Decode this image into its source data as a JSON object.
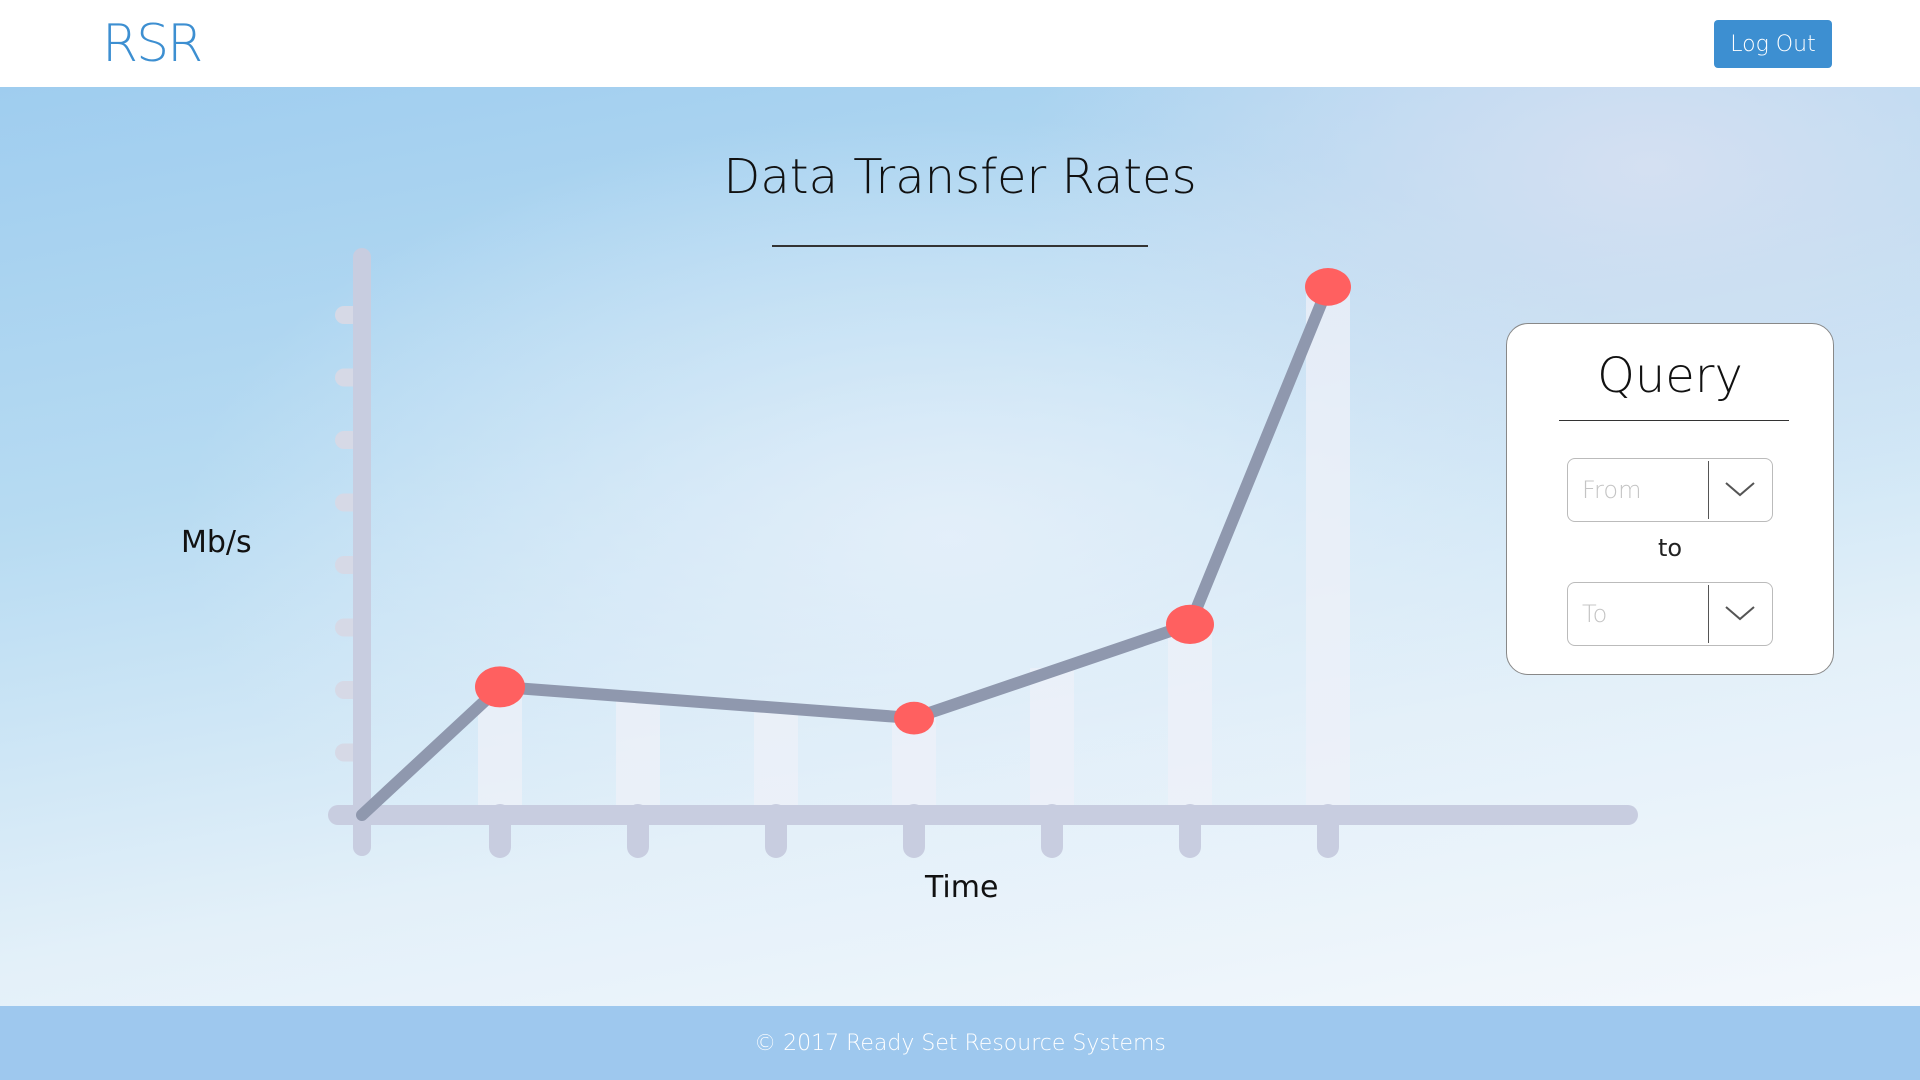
{
  "header": {
    "logo": "RSR",
    "logout_label": "Log Out"
  },
  "main": {
    "title": "Data Transfer Rates"
  },
  "chart_data": {
    "type": "line",
    "title": "Data Transfer Rates",
    "xlabel": "Time",
    "ylabel": "Mb/s",
    "points": [
      {
        "x": 0,
        "y": 0
      },
      {
        "x": 1,
        "y": 2.05
      },
      {
        "x": 4,
        "y": 1.55
      },
      {
        "x": 6,
        "y": 3.05
      },
      {
        "x": 7,
        "y": 8.45
      }
    ],
    "x_ticks": 7,
    "y_ticks": 8,
    "xlim": [
      0,
      9.3
    ],
    "ylim": [
      0,
      9
    ],
    "colors": {
      "line": "#8f98ae",
      "marker": "#ff6060",
      "axis": "#c8cde0",
      "tick": "#d6d9e6",
      "bar": "#eef0f8"
    }
  },
  "query": {
    "title": "Query",
    "from_placeholder": "From",
    "to_separator": "to",
    "to_placeholder": "To"
  },
  "footer": {
    "copyright": "© 2017 Ready Set Resource Systems"
  },
  "colors": {
    "accent": "#3d8fd1",
    "footer": "#9ec8ee"
  }
}
